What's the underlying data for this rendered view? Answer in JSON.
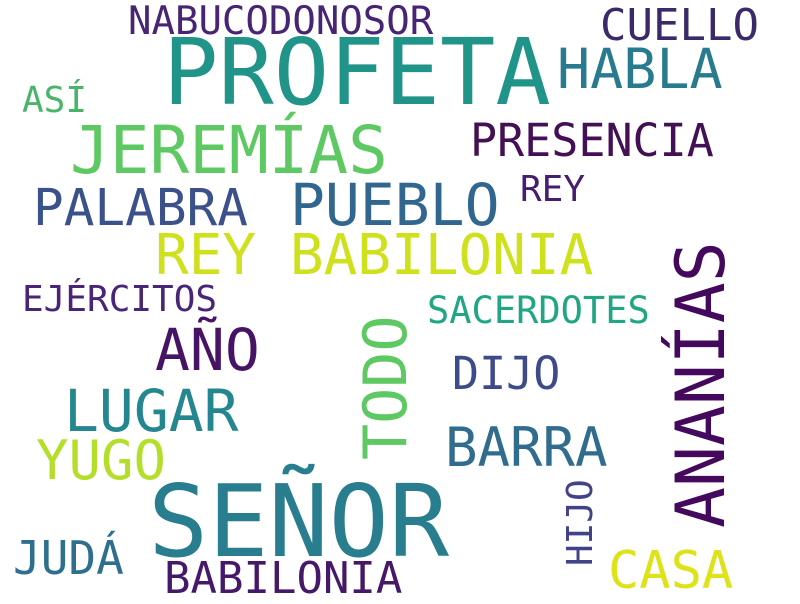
{
  "palette": {
    "background": "#ffffff",
    "dark_purple": "#46186a",
    "indigo": "#3d4d8a",
    "blue": "#2e6d8e",
    "teal_blue": "#25838e",
    "teal": "#1fa187",
    "green": "#5ec962",
    "lime": "#b5de2b",
    "yellow": "#dde318"
  },
  "words": [
    {
      "text": "PROFETA",
      "color": "#209489"
    },
    {
      "text": "SEÑOR",
      "color": "#287d8e"
    },
    {
      "text": "JEREMÍAS",
      "color": "#5ec962"
    },
    {
      "text": "ANANÍAS",
      "color": "#44095c"
    },
    {
      "text": "REY BABILONIA",
      "color": "#cfe11c"
    },
    {
      "text": "NABUCODONOSOR",
      "color": "#482475"
    },
    {
      "text": "HABLA",
      "color": "#287b8e"
    },
    {
      "text": "CUELLO",
      "color": "#3a2a6c"
    },
    {
      "text": "PRESENCIA",
      "color": "#440f55"
    },
    {
      "text": "PALABRA",
      "color": "#3b518b"
    },
    {
      "text": "PUEBLO",
      "color": "#31678e"
    },
    {
      "text": "REY",
      "color": "#481c6e"
    },
    {
      "text": "ASÍ",
      "color": "#4ab56a"
    },
    {
      "text": "EJÉRCITOS",
      "color": "#482576"
    },
    {
      "text": "SACERDOTES",
      "color": "#21a685"
    },
    {
      "text": "AÑO",
      "color": "#471365"
    },
    {
      "text": "TODO",
      "color": "#5ec962"
    },
    {
      "text": "DIJO",
      "color": "#3e4b8a"
    },
    {
      "text": "LUGAR",
      "color": "#24868e"
    },
    {
      "text": "BARRA",
      "color": "#2f6c8e"
    },
    {
      "text": "YUGO",
      "color": "#b5de2b"
    },
    {
      "text": "HIJO",
      "color": "#414287"
    },
    {
      "text": "JUDÁ",
      "color": "#2e6f8e"
    },
    {
      "text": "BABILONIA",
      "color": "#46186a"
    },
    {
      "text": "CASA",
      "color": "#dde318"
    }
  ]
}
